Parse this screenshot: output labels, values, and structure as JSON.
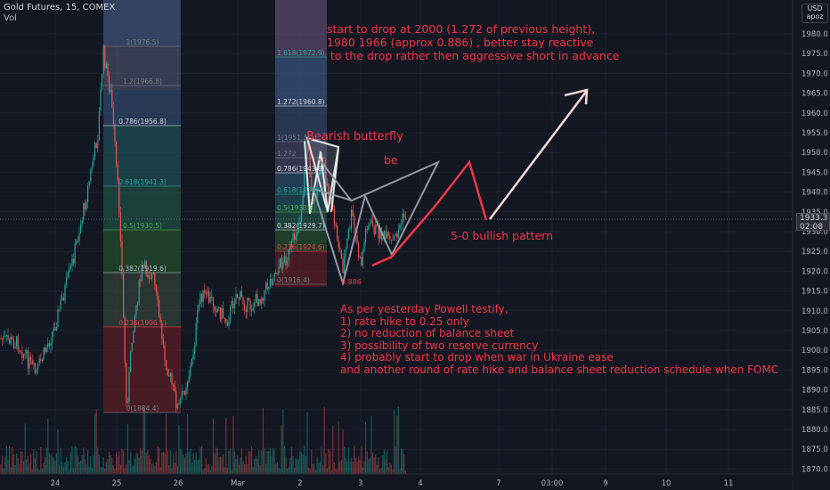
{
  "header": {
    "symbol": "Gold Futures, 15, COMEX",
    "volume_label": "Vol"
  },
  "scale_button": {
    "currency": "USD",
    "user": "apoz"
  },
  "price_axis": {
    "labels": [
      "1980.0",
      "1975.0",
      "1970.0",
      "1965.0",
      "1960.0",
      "1955.0",
      "1950.0",
      "1945.0",
      "1940.0",
      "1935.0",
      "1930.0",
      "1925.0",
      "1920.0",
      "1915.0",
      "1910.0",
      "1905.0",
      "1900.0",
      "1895.0",
      "1890.0",
      "1885.0",
      "1880.0",
      "1875.0",
      "1870.0"
    ],
    "last_price": "1933.3",
    "countdown": "02:08"
  },
  "time_axis": {
    "labels": [
      "24",
      "25",
      "26",
      "Mar",
      "2",
      "3",
      "4",
      "7",
      "03:00",
      "9",
      "10",
      "11"
    ]
  },
  "fib_left": [
    {
      "label": "1(1976.5)",
      "color": "#787b86"
    },
    {
      "label": "1.2(1966.8)",
      "color": "#787b86"
    },
    {
      "label": "0.786(1956.8)",
      "color": "#d1d4dc"
    },
    {
      "label": "0.618(1941.3)",
      "color": "#26a69a"
    },
    {
      "label": "0.5(1930.5)",
      "color": "#4caf50"
    },
    {
      "label": "0.382(1919.6)",
      "color": "#b2b5be"
    },
    {
      "label": "0.236(1906.1)",
      "color": "#f23645"
    },
    {
      "label": "0(1884.4)",
      "color": "#787b86"
    }
  ],
  "fib_right": [
    {
      "label": "1.618(1972.9)",
      "color": "#26a69a"
    },
    {
      "label": "1.272(1960.8)",
      "color": "#d1d4dc"
    },
    {
      "label": "1(1951.3)",
      "color": "#787b86"
    },
    {
      "label": "1.272",
      "color": "#787b86"
    },
    {
      "label": "0.786(1943.8)",
      "color": "#d1d4dc"
    },
    {
      "label": "0.618(1938.0)",
      "color": "#26a69a"
    },
    {
      "label": "0.5(1933.8)",
      "color": "#4caf50"
    },
    {
      "label": "0.382(1929.7)",
      "color": "#d1d4dc"
    },
    {
      "label": "0.236(1924.6)",
      "color": "#f23645"
    },
    {
      "label": "0(1916.4)",
      "color": "#787b86"
    }
  ],
  "annotations": {
    "top_note": "start to drop at 2000 (1.272 of previous height),\n1980 1966 (approx 0.886) , better stay reactive\n to the drop rather then aggressive short in advance",
    "butterfly": "Bearish butterfly",
    "be": "be",
    "bullish": "5-0 bullish pattern",
    "point_label": "0.886",
    "powell_note": "As per yesterday Powell testify,\n1) rate hike to 0.25 only\n2) no reduction of balance sheet\n3) possibility of two reserve currency\n4) probably start to drop when war in Ukraine ease\nand another round of rate hike and balance sheet reduction schedule when FOMC"
  },
  "colors": {
    "background": "#131722",
    "bull": "#26a69a",
    "bear": "#ef5350",
    "annotation": "#f23645",
    "pattern": "#9598a1"
  }
}
